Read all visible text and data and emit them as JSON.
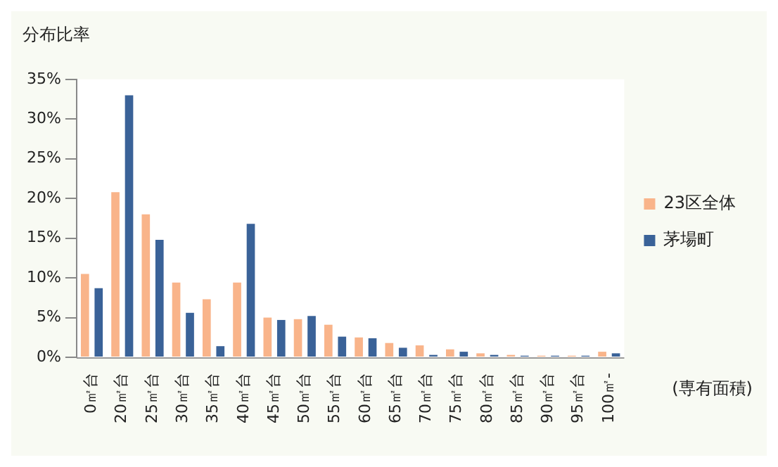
{
  "chart_data": {
    "type": "bar",
    "title": "分布比率",
    "xlabel": "(専有面積)",
    "categories": [
      "0㎡台",
      "20㎡台",
      "25㎡台",
      "30㎡台",
      "35㎡台",
      "40㎡台",
      "45㎡台",
      "50㎡台",
      "55㎡台",
      "60㎡台",
      "65㎡台",
      "70㎡台",
      "75㎡台",
      "80㎡台",
      "85㎡台",
      "90㎡台",
      "95㎡台",
      "100㎡-"
    ],
    "series": [
      {
        "name": "23区全体",
        "color": "#f9b48a",
        "values": [
          10.5,
          20.8,
          18.0,
          9.4,
          7.3,
          9.4,
          5.0,
          4.8,
          4.1,
          2.5,
          1.8,
          1.5,
          1.0,
          0.5,
          0.3,
          0.2,
          0.2,
          0.7
        ]
      },
      {
        "name": "茅場町",
        "color": "#3a6298",
        "values": [
          8.7,
          33.0,
          14.8,
          5.6,
          1.4,
          16.8,
          4.7,
          5.2,
          2.6,
          2.4,
          1.2,
          0.3,
          0.7,
          0.3,
          0.2,
          0.2,
          0.2,
          0.5
        ]
      }
    ],
    "ylim": [
      0,
      35
    ],
    "yticks": [
      {
        "value": 0,
        "label": "0%"
      },
      {
        "value": 5,
        "label": "5%"
      },
      {
        "value": 10,
        "label": "10%"
      },
      {
        "value": 15,
        "label": "15%"
      },
      {
        "value": 20,
        "label": "20%"
      },
      {
        "value": 25,
        "label": "25%"
      },
      {
        "value": 30,
        "label": "30%"
      },
      {
        "value": 35,
        "label": "35%"
      }
    ],
    "grid": false,
    "legend": "right"
  }
}
